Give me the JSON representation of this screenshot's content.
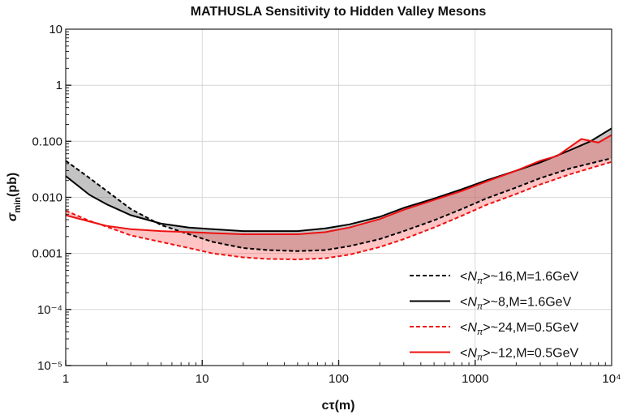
{
  "chart_data": {
    "type": "line",
    "title": "MATHUSLA Sensitivity to Hidden Valley Mesons",
    "xlabel": "cτ(m)",
    "ylabel": "σ_min(pb)",
    "x_scale": "log",
    "y_scale": "log",
    "xlim": [
      1,
      10000
    ],
    "ylim": [
      1e-05,
      10
    ],
    "x_ticks": [
      {
        "value": 1,
        "label": "1"
      },
      {
        "value": 10,
        "label": "10"
      },
      {
        "value": 100,
        "label": "100"
      },
      {
        "value": 1000,
        "label": "1000"
      },
      {
        "value": 10000,
        "label": "10⁴"
      }
    ],
    "y_ticks": [
      {
        "value": 1e-05,
        "label": "10⁻⁵"
      },
      {
        "value": 0.0001,
        "label": "10⁻⁴"
      },
      {
        "value": 0.001,
        "label": "0.001"
      },
      {
        "value": 0.01,
        "label": "0.010"
      },
      {
        "value": 0.1,
        "label": "0.100"
      },
      {
        "value": 1,
        "label": "1"
      },
      {
        "value": 10,
        "label": "10"
      }
    ],
    "grid": true,
    "legend_position": "bottom-right",
    "series": [
      {
        "name": "<Nπ>~16,M=1.6GeV",
        "color": "#000000",
        "dash": "dashed",
        "x": [
          1,
          1.5,
          2,
          3,
          5,
          8,
          12,
          20,
          30,
          50,
          80,
          120,
          200,
          300,
          500,
          800,
          1200,
          2000,
          3000,
          5000,
          10000
        ],
        "y": [
          0.045,
          0.022,
          0.013,
          0.0062,
          0.0032,
          0.0022,
          0.0016,
          0.00125,
          0.00115,
          0.0011,
          0.00115,
          0.00135,
          0.0018,
          0.0025,
          0.0039,
          0.0062,
          0.0095,
          0.015,
          0.022,
          0.033,
          0.05
        ]
      },
      {
        "name": "<Nπ>~8,M=1.6GeV",
        "color": "#000000",
        "dash": "solid",
        "x": [
          1,
          1.5,
          2,
          3,
          5,
          8,
          12,
          20,
          30,
          50,
          80,
          120,
          200,
          300,
          500,
          800,
          1200,
          2000,
          3000,
          5000,
          7000,
          10000
        ],
        "y": [
          0.024,
          0.011,
          0.0075,
          0.0048,
          0.0034,
          0.0029,
          0.0027,
          0.0025,
          0.0025,
          0.0025,
          0.0028,
          0.0033,
          0.0045,
          0.0065,
          0.0095,
          0.014,
          0.02,
          0.03,
          0.042,
          0.07,
          0.1,
          0.17
        ]
      },
      {
        "name": "<Nπ>~24,M=0.5GeV",
        "color": "#ee1111",
        "dash": "dashed",
        "x": [
          1,
          1.5,
          2,
          3,
          5,
          8,
          12,
          20,
          30,
          50,
          80,
          120,
          200,
          300,
          500,
          800,
          1200,
          2000,
          3000,
          5000,
          10000
        ],
        "y": [
          0.0058,
          0.0038,
          0.003,
          0.0021,
          0.0016,
          0.00125,
          0.001,
          0.00085,
          0.0008,
          0.00078,
          0.00082,
          0.00095,
          0.0013,
          0.0018,
          0.0029,
          0.0047,
          0.0073,
          0.0115,
          0.017,
          0.026,
          0.043
        ]
      },
      {
        "name": "<Nπ>~12,M=0.5GeV",
        "color": "#ee1111",
        "dash": "solid",
        "x": [
          1,
          1.5,
          2,
          3,
          5,
          8,
          12,
          20,
          30,
          50,
          80,
          120,
          200,
          300,
          500,
          800,
          1200,
          2000,
          3000,
          4000,
          6000,
          8000,
          10000
        ],
        "y": [
          0.0048,
          0.0037,
          0.0031,
          0.0027,
          0.0025,
          0.0024,
          0.0023,
          0.0022,
          0.0022,
          0.0022,
          0.0024,
          0.0029,
          0.0041,
          0.006,
          0.009,
          0.013,
          0.019,
          0.03,
          0.045,
          0.055,
          0.11,
          0.095,
          0.13
        ]
      }
    ],
    "bands": [
      {
        "between": [
          "<Nπ>~16,M=1.6GeV",
          "<Nπ>~8,M=1.6GeV"
        ],
        "color": "#888888",
        "opacity": 0.5
      },
      {
        "between": [
          "<Nπ>~24,M=0.5GeV",
          "<Nπ>~12,M=0.5GeV"
        ],
        "color": "#ff5555",
        "opacity": 0.35
      }
    ]
  }
}
